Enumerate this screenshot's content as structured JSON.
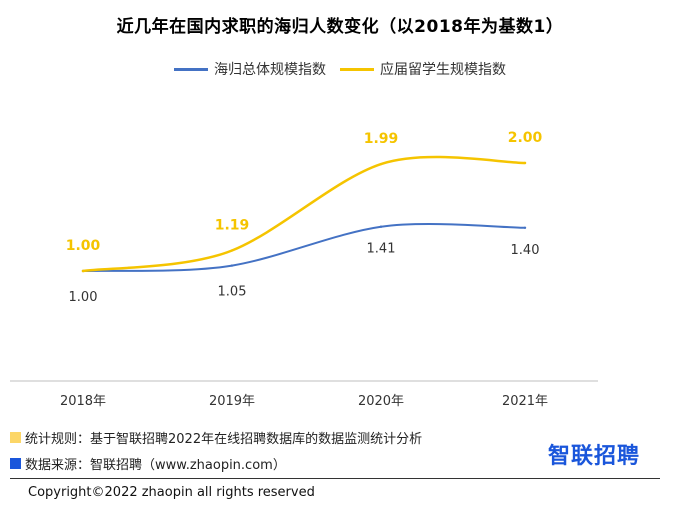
{
  "chart_data": {
    "type": "line",
    "title": "近几年在国内求职的海归人数变化（以2018年为基数1）",
    "categories": [
      "2018年",
      "2019年",
      "2020年",
      "2021年"
    ],
    "series": [
      {
        "name": "海归总体规模指数",
        "color": "#4472c4",
        "values": [
          1.0,
          1.05,
          1.41,
          1.4
        ],
        "labels": [
          "1.00",
          "1.05",
          "1.41",
          "1.40"
        ]
      },
      {
        "name": "应届留学生规模指数",
        "color": "#f5c400",
        "values": [
          1.0,
          1.19,
          1.99,
          2.0
        ],
        "labels": [
          "1.00",
          "1.19",
          "1.99",
          "2.00"
        ]
      }
    ],
    "ylim": [
      0.2,
      2.4
    ],
    "grid": false,
    "legend_position": "top"
  },
  "footer": {
    "rule_note": "统计规则：基于智联招聘2022年在线招聘数据库的数据监测统计分析",
    "rule_color": "#fcd667",
    "source_note": "数据来源：智联招聘（www.zhaopin.com）",
    "source_color": "#1a56db",
    "brand": "智联招聘",
    "copyright": "Copyright©2022 zhaopin all rights reserved"
  }
}
